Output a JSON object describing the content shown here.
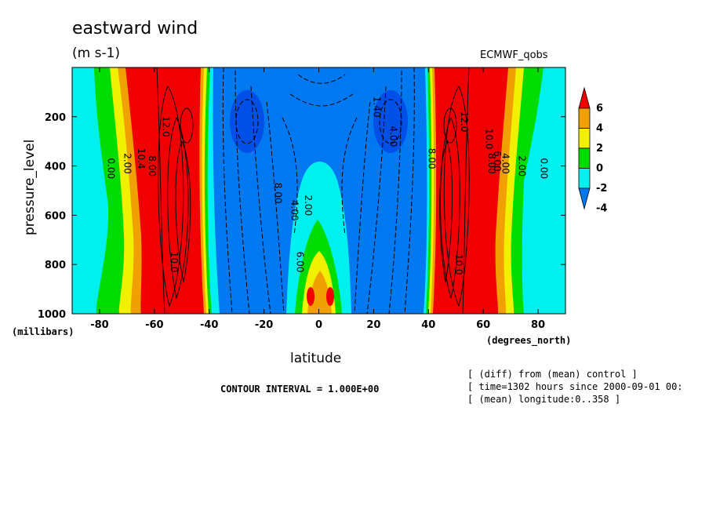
{
  "chart_data": {
    "type": "heatmap",
    "title": "eastward wind",
    "units": "(m s-1)",
    "dataset": "ECMWF_qobs",
    "xlabel": "latitude",
    "x_unit": "(degrees_north)",
    "ylabel": "pressure_level",
    "y_unit": "(millibars)",
    "xlim": [
      -90,
      90
    ],
    "ylim": [
      1000,
      0
    ],
    "x_ticks": [
      "-80",
      "-60",
      "-40",
      "-20",
      "0",
      "20",
      "40",
      "60",
      "80"
    ],
    "y_ticks": [
      "200",
      "400",
      "600",
      "800",
      "1000"
    ],
    "colorbar": {
      "levels": [
        "6",
        "4",
        "2",
        "0",
        "-2",
        "-4"
      ],
      "colors": [
        "#f00000",
        "#f0a000",
        "#f0f000",
        "#00dc00",
        "#00f0f0",
        "#0078f0"
      ]
    },
    "contour_labels": [
      {
        "text": "12.0",
        "lat": -57,
        "p": 240
      },
      {
        "text": "0.00",
        "lat": -77,
        "p": 410
      },
      {
        "text": "2.00",
        "lat": -71,
        "p": 390
      },
      {
        "text": "10.4",
        "lat": -66,
        "p": 370
      },
      {
        "text": "8.00",
        "lat": -62,
        "p": 400
      },
      {
        "text": "10.0",
        "lat": -54,
        "p": 790
      },
      {
        "text": "8.00",
        "lat": -16,
        "p": 510
      },
      {
        "text": "4.00",
        "lat": -10,
        "p": 580
      },
      {
        "text": "2.00",
        "lat": -5,
        "p": 560
      },
      {
        "text": "6.00",
        "lat": -8,
        "p": 790
      },
      {
        "text": "4.00",
        "lat": 26,
        "p": 280
      },
      {
        "text": "1.40",
        "lat": 20,
        "p": 160
      },
      {
        "text": "8.00",
        "lat": 40,
        "p": 370
      },
      {
        "text": "12.0",
        "lat": 52,
        "p": 220
      },
      {
        "text": "10.0",
        "lat": 61,
        "p": 290
      },
      {
        "text": "8.00",
        "lat": 62,
        "p": 390
      },
      {
        "text": "6.00",
        "lat": 64,
        "p": 380
      },
      {
        "text": "4.00",
        "lat": 67,
        "p": 390
      },
      {
        "text": "2.00",
        "lat": 73,
        "p": 400
      },
      {
        "text": "0.00",
        "lat": 81,
        "p": 410
      },
      {
        "text": "10.0",
        "lat": 50,
        "p": 800
      }
    ],
    "contour_interval": "CONTOUR INTERVAL = 1.000E+00",
    "info_lines": [
      "[ (diff) from (mean) control ]",
      "[ time=1302 hours since 2000-09-01 00:",
      "[ (mean) longitude:0..358 ]"
    ]
  }
}
